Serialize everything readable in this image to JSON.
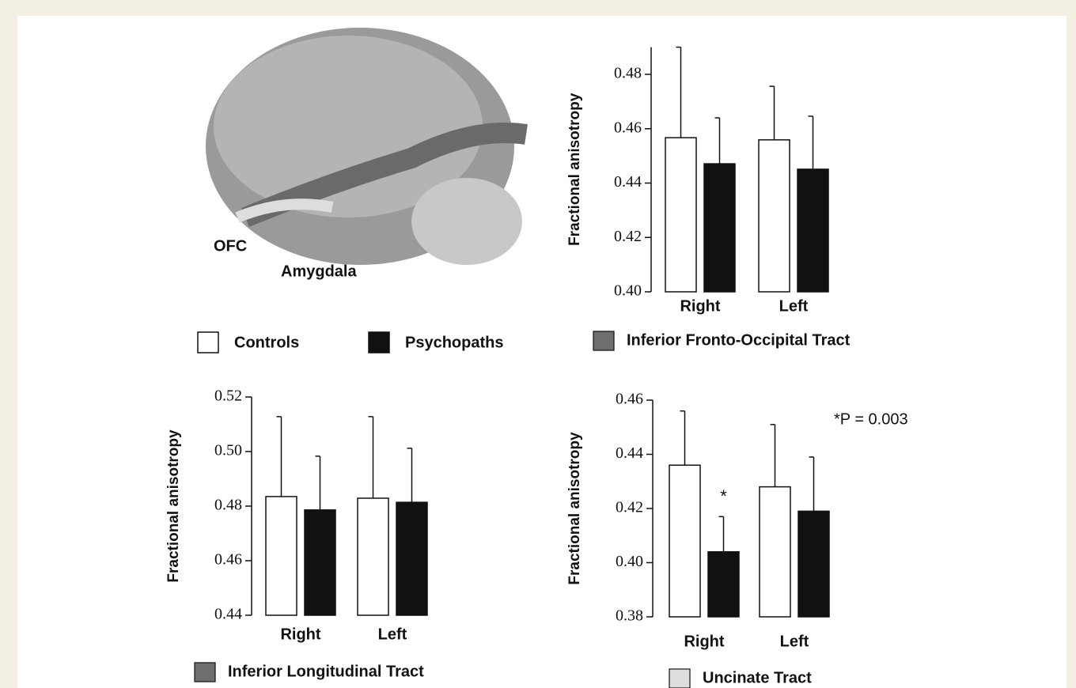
{
  "image_labels": [
    "OFC",
    "Amygdala"
  ],
  "chart_data": [
    {
      "type": "bar",
      "caption": "Inferior Fronto-Occipital Tract",
      "caption_color": "#6e6e6e",
      "y_label": "Fractional anisotropy",
      "categories": [
        "Right",
        "Left"
      ],
      "series": [
        {
          "name": "Controls",
          "color": "#ffffff",
          "values": [
            0.4567,
            0.4559
          ],
          "errors": [
            0.0333,
            0.0197
          ]
        },
        {
          "name": "Psychopaths",
          "color": "#111111",
          "values": [
            0.4471,
            0.4451
          ],
          "errors": [
            0.0169,
            0.0195
          ]
        }
      ],
      "ylim": [
        0.4,
        0.49
      ],
      "yticks": [
        {
          "value": 0.4,
          "label": "0.40"
        },
        0.42,
        0.44,
        0.46,
        0.48
      ]
    },
    {
      "type": "bar",
      "caption": "Inferior Longitudinal Tract",
      "caption_color": "#6e6e6e",
      "y_label": "Fractional anisotropy",
      "categories": [
        "Right",
        "Left"
      ],
      "series": [
        {
          "color": "#ffffff",
          "values": [
            0.4835,
            0.4829
          ],
          "errors": [
            0.0293,
            0.0299
          ]
        },
        {
          "color": "#111111",
          "values": [
            0.4786,
            0.4814
          ],
          "errors": [
            0.0197,
            0.0198
          ]
        }
      ],
      "ylim": [
        0.44,
        0.52
      ],
      "yticks": [
        0.44,
        0.46,
        0.48,
        {
          "value": 0.5,
          "label": "0.50"
        },
        0.52
      ]
    },
    {
      "type": "bar",
      "caption": "Uncinate Tract",
      "caption_color": "#dddddd",
      "y_label": "Fractional anisotropy",
      "categories": [
        "Right",
        "Left"
      ],
      "series": [
        {
          "color": "#ffffff",
          "values": [
            0.436,
            0.428
          ],
          "errors": [
            0.02,
            0.023
          ]
        },
        {
          "color": "#111111",
          "values": [
            0.404,
            0.419
          ],
          "errors": [
            0.013,
            0.02
          ]
        }
      ],
      "annotations": [
        "*",
        "*P = 0.003"
      ],
      "ylim": [
        0.38,
        0.46
      ],
      "yticks": [
        0.38,
        {
          "value": 0.4,
          "label": "0.40"
        },
        0.42,
        0.44,
        0.46
      ]
    }
  ]
}
